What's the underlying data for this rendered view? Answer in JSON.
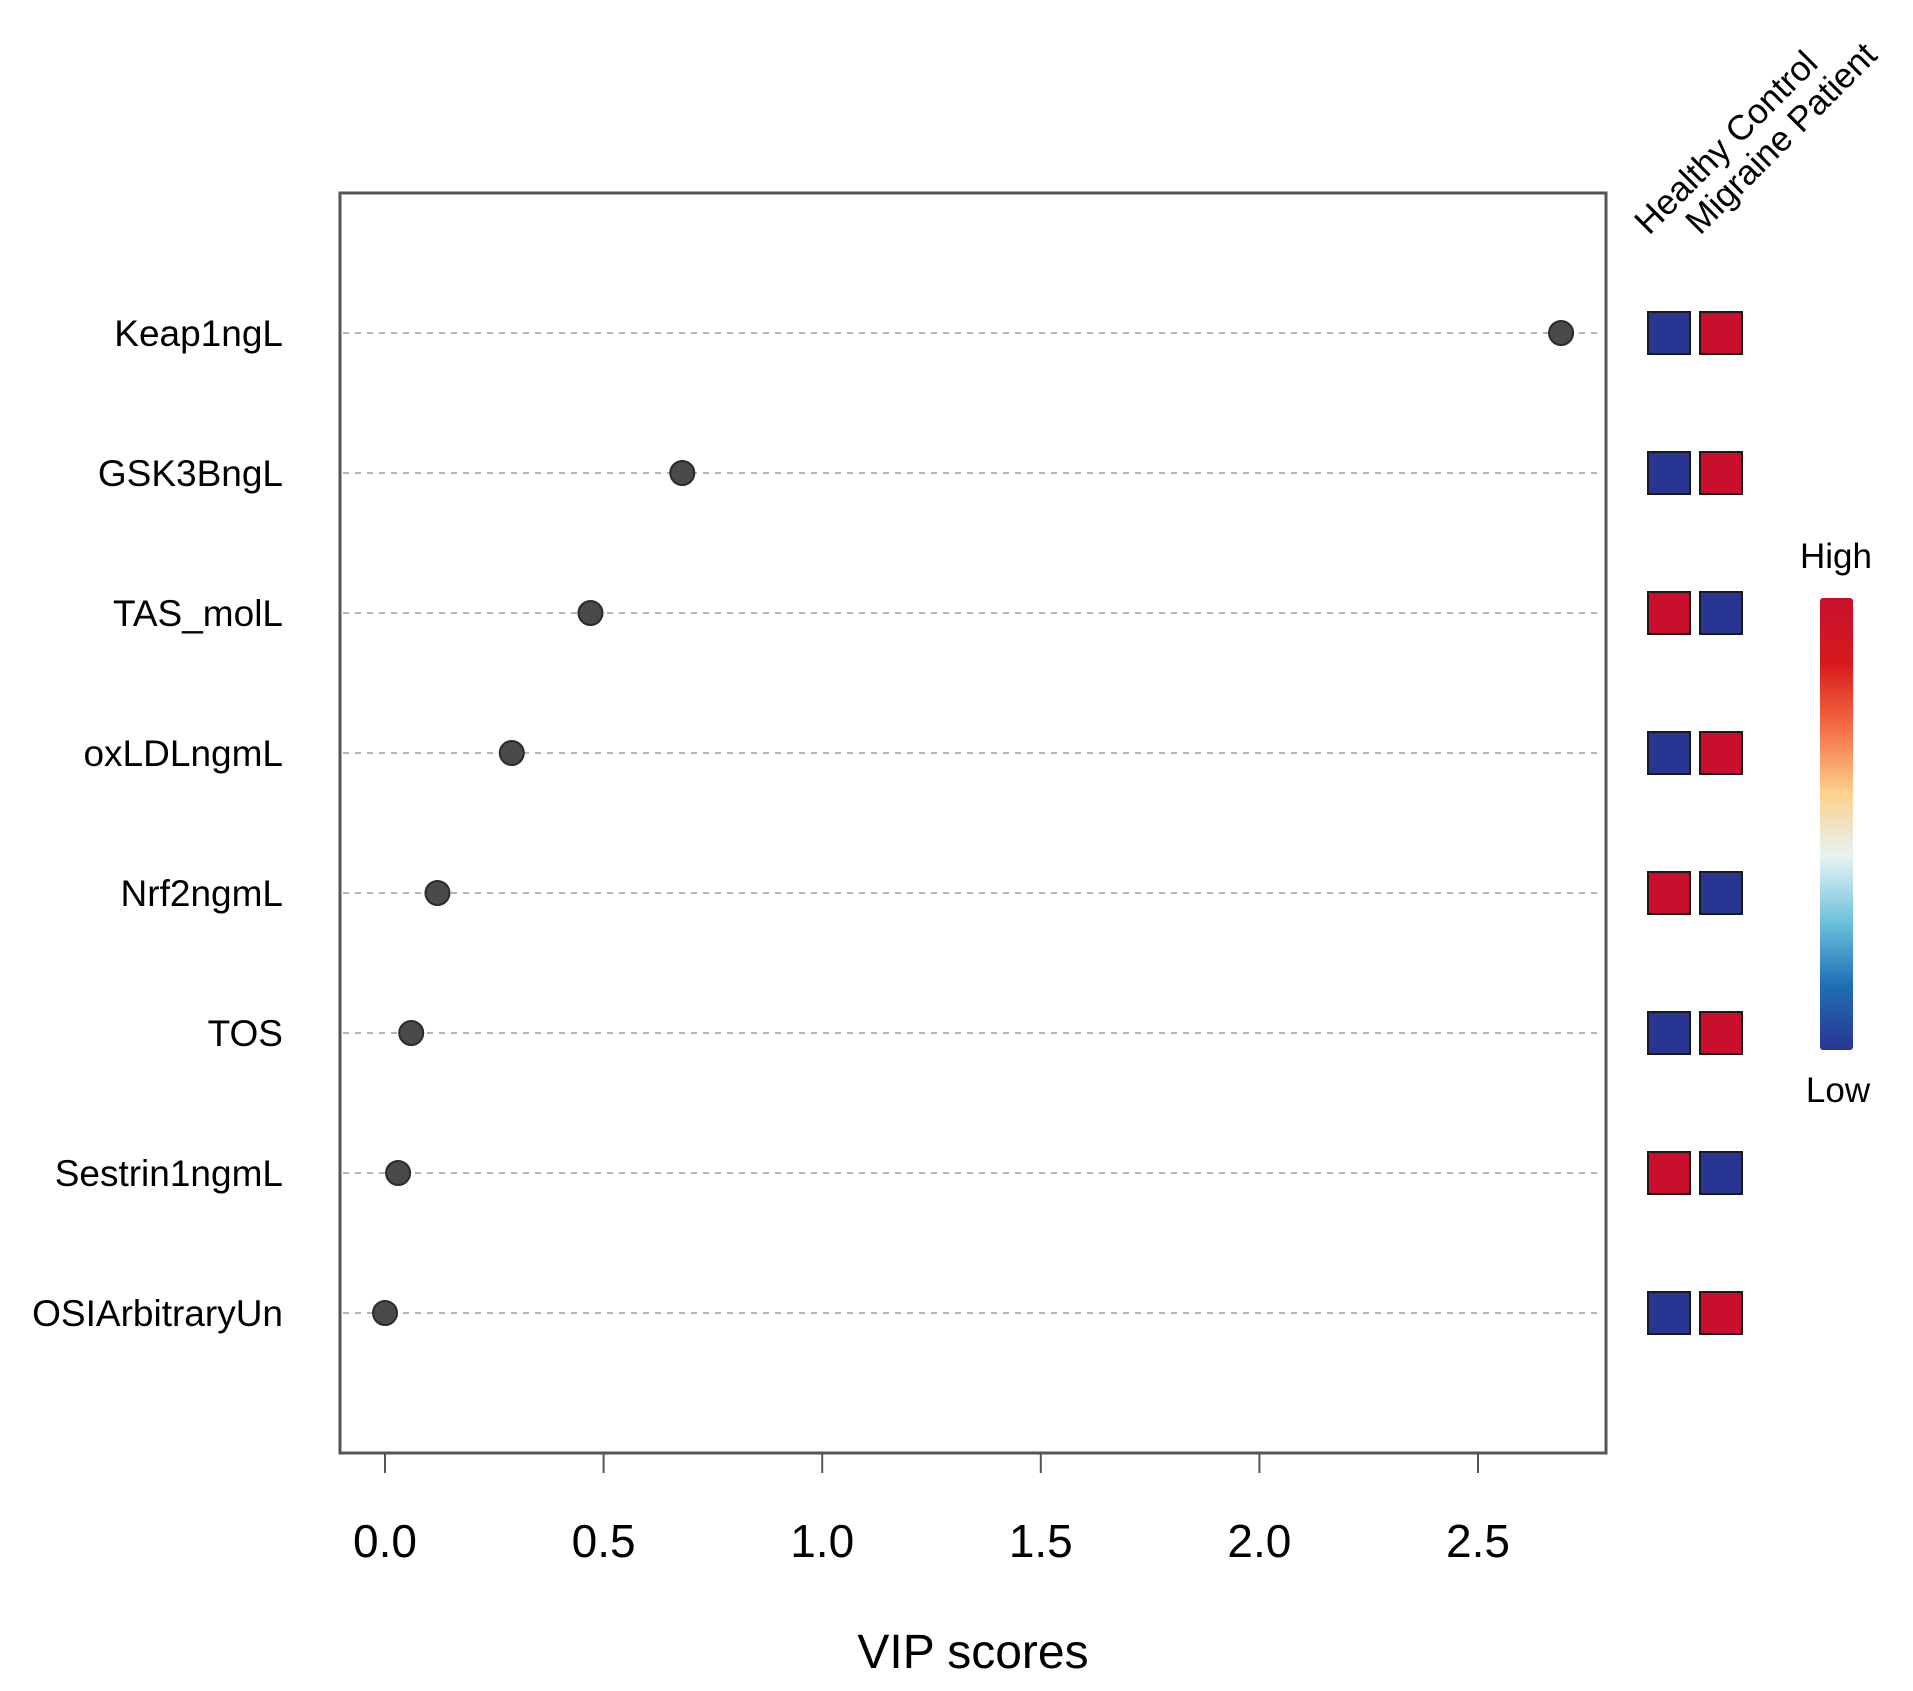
{
  "chart_data": {
    "type": "scatter",
    "subtype": "vip-dot-plot",
    "xlabel": "VIP scores",
    "ylabel": "",
    "xlim": [
      -0.1,
      2.8
    ],
    "x_ticks": [
      0.0,
      0.5,
      1.0,
      1.5,
      2.0,
      2.5
    ],
    "x_tick_labels": [
      "0.0",
      "0.5",
      "1.0",
      "1.5",
      "2.0",
      "2.5"
    ],
    "grid": "horizontal dashed",
    "variables": [
      {
        "name": "Keap1ngL",
        "vip": 2.69,
        "levels": [
          "Low",
          "High"
        ]
      },
      {
        "name": "GSK3BngL",
        "vip": 0.68,
        "levels": [
          "Low",
          "High"
        ]
      },
      {
        "name": "TAS_molL",
        "vip": 0.47,
        "levels": [
          "High",
          "Low"
        ]
      },
      {
        "name": "oxLDLngmL",
        "vip": 0.29,
        "levels": [
          "Low",
          "High"
        ]
      },
      {
        "name": "Nrf2ngmL",
        "vip": 0.12,
        "levels": [
          "High",
          "Low"
        ]
      },
      {
        "name": "TOS",
        "vip": 0.06,
        "levels": [
          "Low",
          "High"
        ]
      },
      {
        "name": "Sestrin1ngmL",
        "vip": 0.03,
        "levels": [
          "High",
          "Low"
        ]
      },
      {
        "name": "OSIArbitraryUn",
        "vip": 0.0,
        "levels": [
          "Low",
          "High"
        ]
      }
    ],
    "groups": [
      "Healthy Control",
      "Migraine Patient"
    ],
    "color_scale": {
      "high_label": "High",
      "low_label": "Low",
      "high_color": "#c8102e",
      "low_color": "#283593",
      "stops": [
        "#283593",
        "#1f6fb4",
        "#6fc3dc",
        "#e8f3f3",
        "#fbd08a",
        "#f46d43",
        "#d7191c",
        "#c8102e"
      ]
    }
  }
}
